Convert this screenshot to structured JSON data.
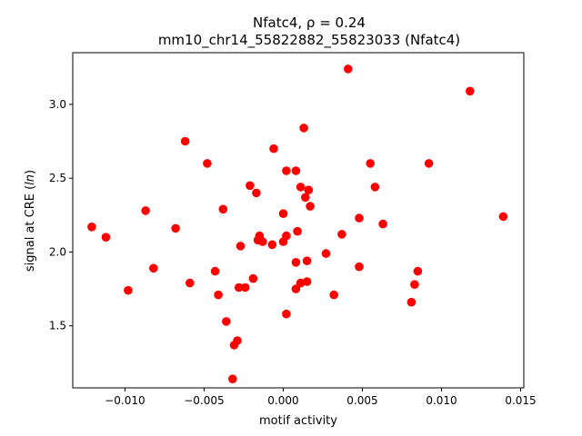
{
  "chart_data": {
    "type": "scatter",
    "title_line1": "Nfatc4, ρ = 0.24",
    "title_line2": "mm10_chr14_55822882_55823033 (Nfatc4)",
    "xlabel": "motif activity",
    "ylabel": "signal at CRE (ln)",
    "xlim": [
      -0.0133,
      0.0152
    ],
    "ylim": [
      1.08,
      3.35
    ],
    "x_ticks": [
      {
        "value": -0.01,
        "label": "−0.010"
      },
      {
        "value": -0.005,
        "label": "−0.005"
      },
      {
        "value": 0.0,
        "label": "0.000"
      },
      {
        "value": 0.005,
        "label": "0.005"
      },
      {
        "value": 0.01,
        "label": "0.010"
      },
      {
        "value": 0.015,
        "label": "0.015"
      }
    ],
    "y_ticks": [
      {
        "value": 1.5,
        "label": "1.5"
      },
      {
        "value": 2.0,
        "label": "2.0"
      },
      {
        "value": 2.5,
        "label": "2.5"
      },
      {
        "value": 3.0,
        "label": "3.0"
      }
    ],
    "grid": false,
    "series": [
      {
        "color": "#ff0000",
        "points": [
          [
            0.0041,
            3.24
          ],
          [
            0.0118,
            3.09
          ],
          [
            0.0013,
            2.84
          ],
          [
            -0.0062,
            2.75
          ],
          [
            -0.0006,
            2.7
          ],
          [
            -0.0048,
            2.6
          ],
          [
            0.0055,
            2.6
          ],
          [
            0.0092,
            2.6
          ],
          [
            0.0002,
            2.55
          ],
          [
            0.0008,
            2.55
          ],
          [
            0.0058,
            2.44
          ],
          [
            -0.0021,
            2.45
          ],
          [
            0.0011,
            2.44
          ],
          [
            0.0016,
            2.42
          ],
          [
            0.0014,
            2.37
          ],
          [
            -0.0017,
            2.4
          ],
          [
            0.0017,
            2.31
          ],
          [
            -0.0038,
            2.29
          ],
          [
            -0.0087,
            2.28
          ],
          [
            0.0,
            2.26
          ],
          [
            0.0048,
            2.23
          ],
          [
            0.0139,
            2.24
          ],
          [
            -0.0121,
            2.17
          ],
          [
            -0.0068,
            2.16
          ],
          [
            0.0063,
            2.19
          ],
          [
            0.0009,
            2.14
          ],
          [
            0.0037,
            2.12
          ],
          [
            -0.0112,
            2.1
          ],
          [
            0.0002,
            2.11
          ],
          [
            -0.0015,
            2.11
          ],
          [
            -0.0016,
            2.08
          ],
          [
            -0.0013,
            2.07
          ],
          [
            0.0,
            2.07
          ],
          [
            -0.0007,
            2.05
          ],
          [
            -0.0027,
            2.04
          ],
          [
            0.0027,
            1.99
          ],
          [
            0.0015,
            1.94
          ],
          [
            0.0008,
            1.93
          ],
          [
            0.0048,
            1.9
          ],
          [
            -0.0082,
            1.89
          ],
          [
            0.0085,
            1.87
          ],
          [
            -0.0043,
            1.87
          ],
          [
            -0.0019,
            1.82
          ],
          [
            0.0015,
            1.8
          ],
          [
            0.0011,
            1.79
          ],
          [
            -0.0059,
            1.79
          ],
          [
            0.0083,
            1.78
          ],
          [
            -0.0028,
            1.76
          ],
          [
            -0.0024,
            1.76
          ],
          [
            0.0008,
            1.75
          ],
          [
            -0.0098,
            1.74
          ],
          [
            -0.0041,
            1.71
          ],
          [
            0.0032,
            1.71
          ],
          [
            0.0081,
            1.66
          ],
          [
            0.0002,
            1.58
          ],
          [
            -0.0036,
            1.53
          ],
          [
            -0.0029,
            1.4
          ],
          [
            -0.0031,
            1.37
          ],
          [
            -0.0032,
            1.14
          ]
        ]
      }
    ]
  }
}
